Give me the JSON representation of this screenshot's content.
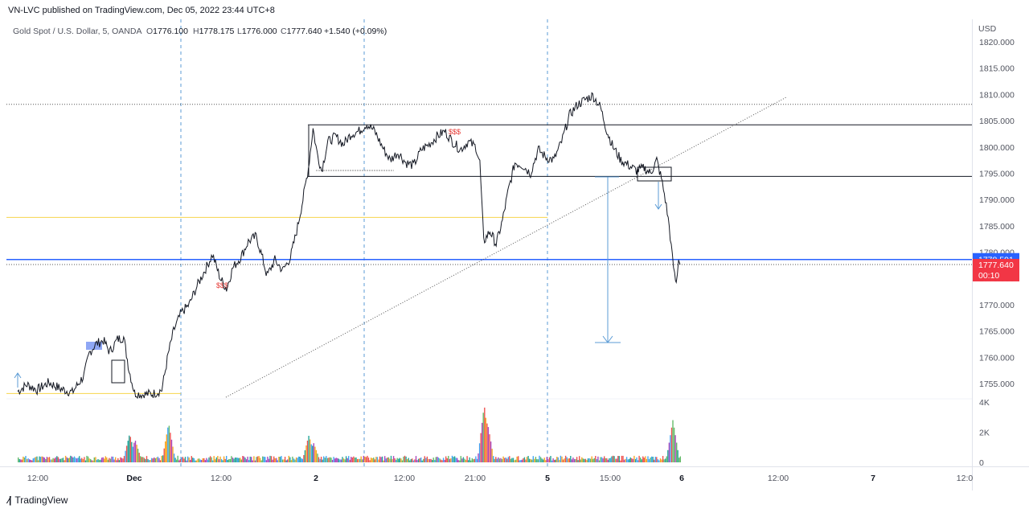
{
  "header": {
    "published": "VN-LVC published on TradingView.com, Dec 05, 2022 23:44 UTC+8"
  },
  "legend": {
    "symbol": "Gold Spot / U.S. Dollar, 5, OANDA",
    "o_label": "O",
    "o_value": "1776.100",
    "h_label": "H",
    "h_value": "1778.175",
    "l_label": "L",
    "l_value": "1776.000",
    "c_label": "C",
    "c_value": "1777.640",
    "change": "+1.540 (+0.09%)"
  },
  "colors": {
    "price_line": "#131722",
    "blue_line": "#2962ff",
    "last_price_tag": "#f23645",
    "blue_tag": "#2962ff",
    "yellow_line": "#f7d44c",
    "session_divider": "#5b9bd5",
    "box_fill": "#8fa7f5"
  },
  "footer": {
    "brand": "TradingView"
  },
  "chart_data": {
    "type": "line",
    "title": "Gold Spot / U.S. Dollar, 5, OANDA",
    "currency": "USD",
    "y_ticks": [
      "1820.000",
      "1815.000",
      "1810.000",
      "1805.000",
      "1800.000",
      "1795.000",
      "1790.000",
      "1785.000",
      "1780.000",
      "1775.000",
      "1770.000",
      "1765.000",
      "1760.000",
      "1755.000"
    ],
    "y_range": [
      1752.5,
      1822
    ],
    "volume_ticks": [
      "4K",
      "2K",
      "0"
    ],
    "x_ticks": [
      "12:00",
      "Dec",
      "12:00",
      "2",
      "12:00",
      "21:00",
      "5",
      "15:00",
      "6",
      "12:00",
      "7",
      "12:0"
    ],
    "x_ticks_bold": [
      "Dec",
      "2",
      "5",
      "6",
      "7"
    ],
    "price_tags": [
      {
        "label": "1778.591",
        "price": 1778.591,
        "color": "#2962ff"
      },
      {
        "label": "1777.640",
        "price": 1777.64,
        "color": "#f23645",
        "countdown": "00:10"
      }
    ],
    "horizontal_levels": [
      {
        "price": 1808.1,
        "style": "dotted",
        "color": "#555555"
      },
      {
        "price": 1804.2,
        "style": "solid",
        "color": "#131722"
      },
      {
        "price": 1794.4,
        "style": "solid",
        "color": "#131722"
      },
      {
        "price": 1786.6,
        "style": "solid",
        "color": "#f7d44c"
      },
      {
        "price": 1778.591,
        "style": "solid",
        "color": "#2962ff"
      },
      {
        "price": 1777.64,
        "style": "dotted",
        "color": "#555555"
      },
      {
        "price": 1753.1,
        "style": "solid",
        "color": "#f7d44c"
      }
    ],
    "annotations": [
      "$$$",
      "$$$"
    ],
    "series": [
      {
        "name": "",
        "values": [
          {
            "t": 0.0,
            "p": 1753.5
          },
          {
            "t": 1.2,
            "p": 1754.8
          },
          {
            "t": 2.5,
            "p": 1753.8
          },
          {
            "t": 4.0,
            "p": 1755.2
          },
          {
            "t": 5.5,
            "p": 1754.0
          },
          {
            "t": 7.0,
            "p": 1753.3
          },
          {
            "t": 8.5,
            "p": 1756.5
          },
          {
            "t": 9.2,
            "p": 1760.8
          },
          {
            "t": 10.0,
            "p": 1762.5
          },
          {
            "t": 11.0,
            "p": 1763.2
          },
          {
            "t": 11.8,
            "p": 1761.0
          },
          {
            "t": 12.8,
            "p": 1763.4
          },
          {
            "t": 13.6,
            "p": 1763.8
          },
          {
            "t": 14.3,
            "p": 1757.5
          },
          {
            "t": 15.0,
            "p": 1753.2
          },
          {
            "t": 16.0,
            "p": 1752.9
          },
          {
            "t": 17.5,
            "p": 1753.1
          },
          {
            "t": 18.5,
            "p": 1753.8
          },
          {
            "t": 19.3,
            "p": 1760.5
          },
          {
            "t": 20.0,
            "p": 1765.0
          },
          {
            "t": 21.0,
            "p": 1768.5
          },
          {
            "t": 22.0,
            "p": 1770.0
          },
          {
            "t": 23.0,
            "p": 1773.5
          },
          {
            "t": 24.0,
            "p": 1776.5
          },
          {
            "t": 25.0,
            "p": 1779.5
          },
          {
            "t": 26.0,
            "p": 1775.0
          },
          {
            "t": 26.8,
            "p": 1773.0
          },
          {
            "t": 27.6,
            "p": 1777.0
          },
          {
            "t": 28.6,
            "p": 1779.0
          },
          {
            "t": 29.6,
            "p": 1782.0
          },
          {
            "t": 30.6,
            "p": 1783.0
          },
          {
            "t": 31.2,
            "p": 1780.0
          },
          {
            "t": 32.0,
            "p": 1775.5
          },
          {
            "t": 33.0,
            "p": 1778.5
          },
          {
            "t": 34.0,
            "p": 1776.5
          },
          {
            "t": 35.0,
            "p": 1779.0
          },
          {
            "t": 35.8,
            "p": 1784.0
          },
          {
            "t": 36.6,
            "p": 1790.0
          },
          {
            "t": 37.3,
            "p": 1796.0
          },
          {
            "t": 37.9,
            "p": 1803.5
          },
          {
            "t": 38.4,
            "p": 1799.0
          },
          {
            "t": 39.0,
            "p": 1795.5
          },
          {
            "t": 39.8,
            "p": 1801.0
          },
          {
            "t": 40.8,
            "p": 1802.0
          },
          {
            "t": 41.8,
            "p": 1800.5
          },
          {
            "t": 42.8,
            "p": 1802.5
          },
          {
            "t": 43.8,
            "p": 1803.0
          },
          {
            "t": 44.8,
            "p": 1804.4
          },
          {
            "t": 45.8,
            "p": 1803.0
          },
          {
            "t": 46.8,
            "p": 1800.0
          },
          {
            "t": 47.8,
            "p": 1797.5
          },
          {
            "t": 48.8,
            "p": 1799.0
          },
          {
            "t": 49.8,
            "p": 1797.0
          },
          {
            "t": 50.8,
            "p": 1796.5
          },
          {
            "t": 51.8,
            "p": 1799.5
          },
          {
            "t": 52.8,
            "p": 1800.5
          },
          {
            "t": 53.8,
            "p": 1802.0
          },
          {
            "t": 54.8,
            "p": 1803.0
          },
          {
            "t": 55.8,
            "p": 1801.0
          },
          {
            "t": 56.8,
            "p": 1799.5
          },
          {
            "t": 57.8,
            "p": 1801.0
          },
          {
            "t": 58.8,
            "p": 1800.0
          },
          {
            "t": 59.3,
            "p": 1797.0
          },
          {
            "t": 59.8,
            "p": 1782.0
          },
          {
            "t": 60.6,
            "p": 1784.0
          },
          {
            "t": 61.4,
            "p": 1781.5
          },
          {
            "t": 62.2,
            "p": 1786.0
          },
          {
            "t": 63.0,
            "p": 1792.0
          },
          {
            "t": 63.8,
            "p": 1797.0
          },
          {
            "t": 64.8,
            "p": 1796.5
          },
          {
            "t": 65.8,
            "p": 1795.0
          },
          {
            "t": 66.8,
            "p": 1799.5
          },
          {
            "t": 67.8,
            "p": 1798.0
          },
          {
            "t": 68.8,
            "p": 1797.5
          },
          {
            "t": 69.8,
            "p": 1801.0
          },
          {
            "t": 70.8,
            "p": 1806.0
          },
          {
            "t": 71.8,
            "p": 1808.0
          },
          {
            "t": 72.8,
            "p": 1809.0
          },
          {
            "t": 73.8,
            "p": 1809.8
          },
          {
            "t": 74.8,
            "p": 1807.5
          },
          {
            "t": 75.6,
            "p": 1803.0
          },
          {
            "t": 76.4,
            "p": 1800.0
          },
          {
            "t": 77.4,
            "p": 1797.5
          },
          {
            "t": 78.4,
            "p": 1796.5
          },
          {
            "t": 79.4,
            "p": 1795.5
          },
          {
            "t": 80.4,
            "p": 1796.0
          },
          {
            "t": 81.2,
            "p": 1795.0
          },
          {
            "t": 82.0,
            "p": 1797.5
          },
          {
            "t": 82.6,
            "p": 1794.0
          },
          {
            "t": 83.1,
            "p": 1790.0
          },
          {
            "t": 83.6,
            "p": 1785.0
          },
          {
            "t": 84.0,
            "p": 1779.0
          },
          {
            "t": 84.3,
            "p": 1775.5
          },
          {
            "t": 84.5,
            "p": 1774.0
          },
          {
            "t": 84.8,
            "p": 1778.5
          },
          {
            "t": 85.0,
            "p": 1777.64
          }
        ]
      }
    ],
    "volume": {
      "ylim": [
        0,
        4300
      ],
      "spikes": [
        {
          "t": 14.3,
          "v": 1900
        },
        {
          "t": 15.0,
          "v": 1500
        },
        {
          "t": 19.3,
          "v": 2600
        },
        {
          "t": 37.3,
          "v": 1800
        },
        {
          "t": 37.9,
          "v": 1300
        },
        {
          "t": 59.8,
          "v": 3800
        },
        {
          "t": 60.2,
          "v": 2700
        },
        {
          "t": 84.0,
          "v": 2800
        }
      ]
    }
  }
}
